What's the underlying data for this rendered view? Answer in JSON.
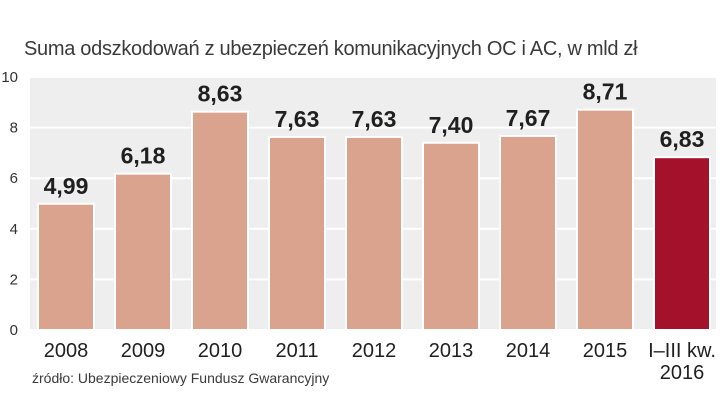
{
  "chart_data": {
    "type": "bar",
    "title": "Suma odszkodowań z ubezpieczeń komunikacyjnych OC i AC, w mld zł",
    "source": "źródło: Ubezpieczeniowy Fundusz Gwarancyjny",
    "categories": [
      "2008",
      "2009",
      "2010",
      "2011",
      "2012",
      "2013",
      "2014",
      "2015",
      "I–III kw.\n2016"
    ],
    "values": [
      4.99,
      6.18,
      8.63,
      7.63,
      7.63,
      7.4,
      7.67,
      8.71,
      6.83
    ],
    "value_labels": [
      "4,99",
      "6,18",
      "8,63",
      "7,63",
      "7,63",
      "7,40",
      "7,67",
      "8,71",
      "6,83"
    ],
    "ylim": [
      0,
      10
    ],
    "yticks": [
      "0",
      "2",
      "4",
      "6",
      "8",
      "10"
    ],
    "grid": true,
    "colors": {
      "bar": "#d9a38d",
      "highlight": "#a3122a",
      "bar_border": "#ffffff",
      "grid": "#ffffff",
      "plot_background": "#eeeeee"
    }
  }
}
